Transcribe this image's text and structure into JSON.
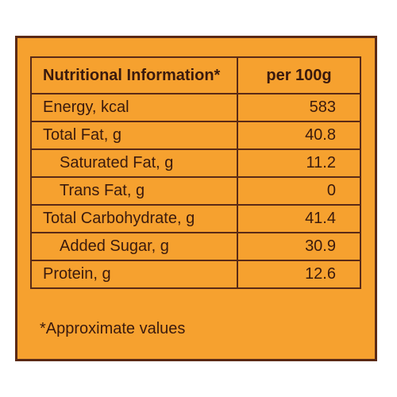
{
  "table": {
    "header": {
      "label": "Nutritional Information*",
      "value": "per 100g"
    },
    "rows": [
      {
        "label": "Energy, kcal",
        "value": "583",
        "indent": false
      },
      {
        "label": "Total Fat, g",
        "value": "40.8",
        "indent": false
      },
      {
        "label": "Saturated Fat, g",
        "value": "11.2",
        "indent": true
      },
      {
        "label": "Trans Fat, g",
        "value": "0",
        "indent": true
      },
      {
        "label": "Total Carbohydrate, g",
        "value": "41.4",
        "indent": false
      },
      {
        "label": "Added Sugar, g",
        "value": "30.9",
        "indent": true
      },
      {
        "label": "Protein, g",
        "value": "12.6",
        "indent": false
      }
    ]
  },
  "footnote": "*Approximate values",
  "colors": {
    "background": "#f6a12f",
    "border": "#5a2a16",
    "text": "#3a1a0e"
  }
}
